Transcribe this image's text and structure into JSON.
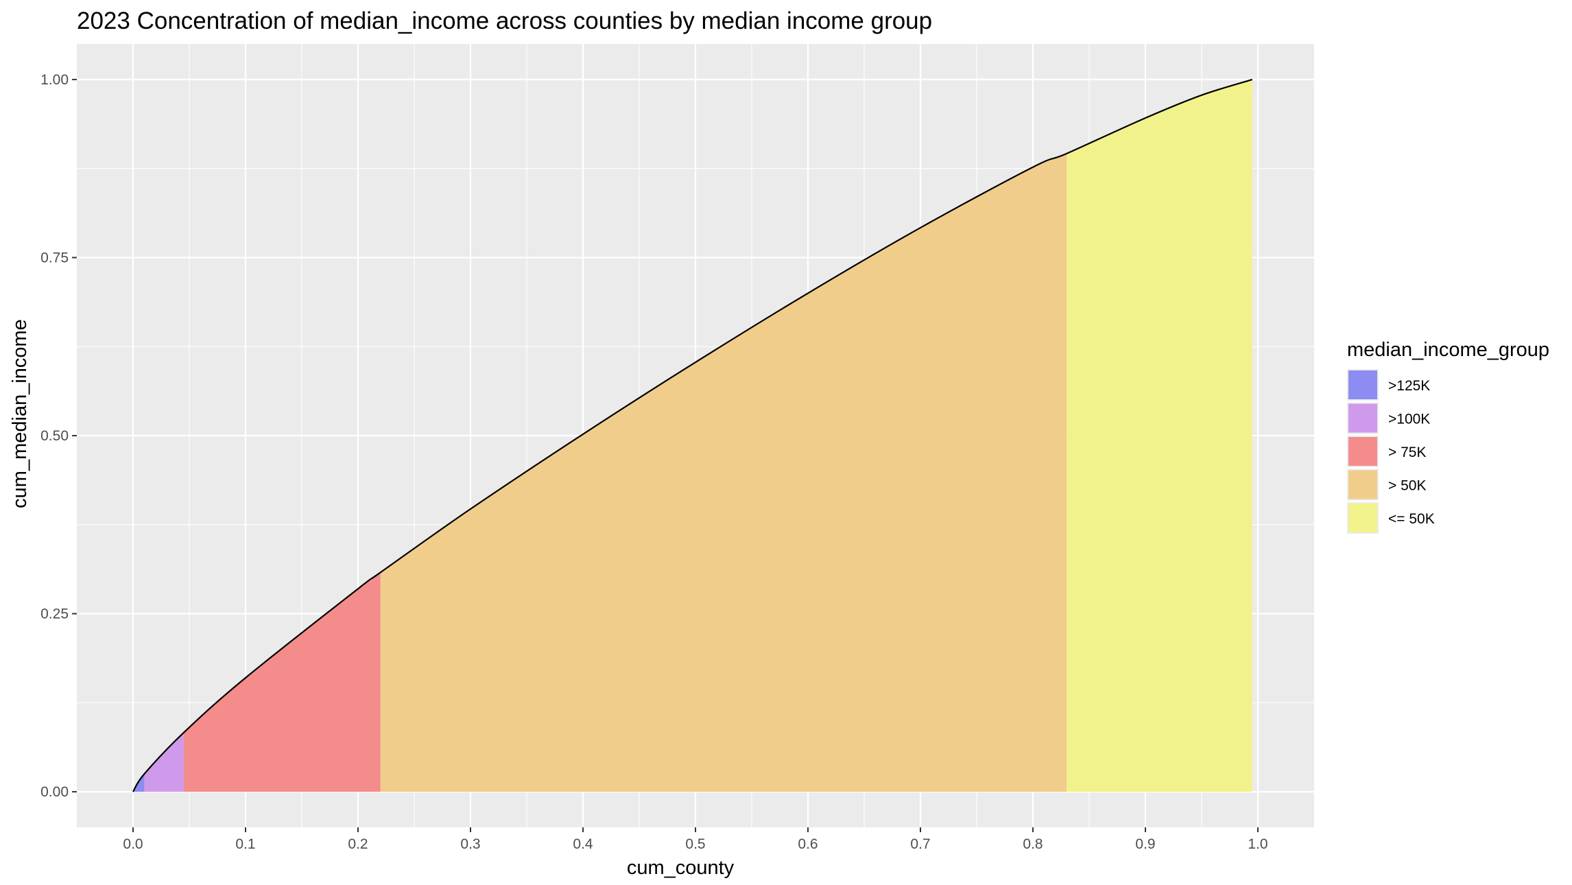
{
  "chart_data": {
    "type": "area",
    "title": "2023 Concentration of median_income across counties by median income group",
    "xlabel": "cum_county",
    "ylabel": "cum_median_income",
    "xlim": [
      -0.05,
      1.05
    ],
    "ylim": [
      -0.05,
      1.05
    ],
    "x_ticks": [
      "0.0",
      "0.1",
      "0.2",
      "0.3",
      "0.4",
      "0.5",
      "0.6",
      "0.7",
      "0.8",
      "0.9",
      "1.0"
    ],
    "y_ticks": [
      "0.00",
      "0.25",
      "0.50",
      "0.75",
      "1.00"
    ],
    "grid": true,
    "legend": {
      "title": "median_income_group",
      "position": "right",
      "entries": [
        ">125K",
        ">100K",
        "> 75K",
        "> 50K",
        "<= 50K"
      ]
    },
    "curve": {
      "x": [
        0.0,
        0.01,
        0.045,
        0.1,
        0.2,
        0.22,
        0.3,
        0.4,
        0.5,
        0.6,
        0.7,
        0.8,
        0.83,
        0.9,
        0.95,
        0.995
      ],
      "y": [
        0.0,
        0.025,
        0.083,
        0.16,
        0.285,
        0.308,
        0.397,
        0.502,
        0.603,
        0.7,
        0.792,
        0.877,
        0.896,
        0.946,
        0.978,
        1.0
      ]
    },
    "series": [
      {
        "name": ">125K",
        "x_start": 0.0,
        "x_end": 0.01,
        "color": "#8c8cf2"
      },
      {
        "name": ">100K",
        "x_start": 0.01,
        "x_end": 0.045,
        "color": "#cf9aeb"
      },
      {
        "name": "> 75K",
        "x_start": 0.045,
        "x_end": 0.22,
        "color": "#f48c8c"
      },
      {
        "name": "> 50K",
        "x_start": 0.22,
        "x_end": 0.83,
        "color": "#f1cd8c"
      },
      {
        "name": "<= 50K",
        "x_start": 0.83,
        "x_end": 0.995,
        "color": "#f2f28c"
      }
    ],
    "panel_background": "#ebebeb"
  }
}
